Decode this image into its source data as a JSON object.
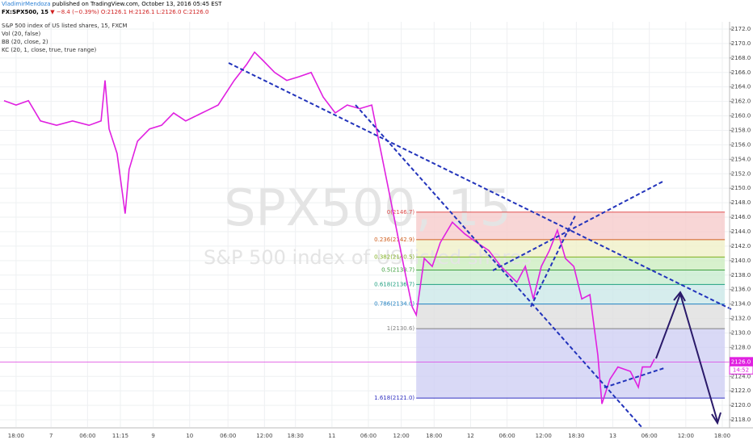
{
  "header": {
    "author": "VladimirMendoza",
    "published": "published on TradingView.com, October 13, 2016 05:45 EST",
    "symbol": "FX:SPX500, 15",
    "change": "▼ −8.4 (−0.39%)",
    "ohlc": "O:2126.1 H:2126.1 L:2126.0 C:2126.0"
  },
  "chart_data": {
    "type": "line",
    "watermark": "SPX500, 15",
    "watermark_subtitle": "S&P 500 index of US listed shares",
    "indicators": [
      "Vol (20, false)",
      "BB (20, close, 2)",
      "KC (20, 1, close, true, true range)"
    ],
    "grid": true,
    "ylim": [
      2117,
      2173
    ],
    "xlim": [
      0,
      200
    ],
    "yticks": [
      {
        "value": 2118,
        "label": "2118.0"
      },
      {
        "value": 2120,
        "label": "2120.0"
      },
      {
        "value": 2122,
        "label": "2122.0"
      },
      {
        "value": 2124,
        "label": "2124.0"
      },
      {
        "value": 2126,
        "label": "2126.0"
      },
      {
        "value": 2128,
        "label": "2128.0"
      },
      {
        "value": 2130,
        "label": "2130.0"
      },
      {
        "value": 2132,
        "label": "2132.0"
      },
      {
        "value": 2134,
        "label": "2134.0"
      },
      {
        "value": 2136,
        "label": "2136.0"
      },
      {
        "value": 2138,
        "label": "2138.0"
      },
      {
        "value": 2140,
        "label": "2140.0"
      },
      {
        "value": 2142,
        "label": "2142.0"
      },
      {
        "value": 2144,
        "label": "2144.0"
      },
      {
        "value": 2146,
        "label": "2146.0"
      },
      {
        "value": 2148,
        "label": "2148.0"
      },
      {
        "value": 2150,
        "label": "2150.0"
      },
      {
        "value": 2152,
        "label": "2152.0"
      },
      {
        "value": 2154,
        "label": "2154.0"
      },
      {
        "value": 2156,
        "label": "2156.0"
      },
      {
        "value": 2158,
        "label": "2158.0"
      },
      {
        "value": 2160,
        "label": "2160.0"
      },
      {
        "value": 2162,
        "label": "2162.0"
      },
      {
        "value": 2164,
        "label": "2164.0"
      },
      {
        "value": 2166,
        "label": "2166.0"
      },
      {
        "value": 2168,
        "label": "2168.0"
      },
      {
        "value": 2170,
        "label": "2170.0"
      },
      {
        "value": 2172,
        "label": "2172.0"
      }
    ],
    "xticks": [
      {
        "value": 4.4,
        "label": "18:00"
      },
      {
        "value": 14,
        "label": "7"
      },
      {
        "value": 24,
        "label": "06:00"
      },
      {
        "value": 33,
        "label": "11:15"
      },
      {
        "value": 42,
        "label": "9"
      },
      {
        "value": 52,
        "label": "10"
      },
      {
        "value": 62.5,
        "label": "06:00"
      },
      {
        "value": 72.5,
        "label": "12:00"
      },
      {
        "value": 81,
        "label": "18:30"
      },
      {
        "value": 91,
        "label": "11"
      },
      {
        "value": 101,
        "label": "06:00"
      },
      {
        "value": 110,
        "label": "12:00"
      },
      {
        "value": 119,
        "label": "18:00"
      },
      {
        "value": 129,
        "label": "12"
      },
      {
        "value": 139,
        "label": "06:00"
      },
      {
        "value": 149,
        "label": "12:00"
      },
      {
        "value": 158,
        "label": "18:30"
      },
      {
        "value": 168,
        "label": "13"
      },
      {
        "value": 178,
        "label": "06:00"
      },
      {
        "value": 188,
        "label": "12:00"
      },
      {
        "value": 198,
        "label": "18:00"
      }
    ],
    "series": [
      {
        "name": "S&P 500 index of US listed shares, 15, FXCM",
        "color": "#e020e0",
        "x": [
          1.1,
          4.4,
          7.8,
          11.1,
          15.5,
          19.9,
          24.4,
          27.7,
          28.8,
          29.9,
          32.1,
          34.3,
          35.4,
          37.7,
          41.0,
          44.3,
          47.6,
          50.9,
          55.4,
          59.8,
          64.2,
          67.6,
          69.8,
          72.0,
          75.3,
          78.6,
          81.9,
          85.3,
          88.6,
          91.9,
          95.2,
          98.6,
          101.9,
          104.1,
          106.3,
          108.5,
          110.7,
          113.0,
          114.1,
          116.3,
          118.5,
          120.7,
          124.0,
          127.4,
          130.7,
          134.0,
          137.3,
          141.7,
          144.0,
          146.2,
          148.4,
          150.6,
          152.8,
          155.0,
          157.3,
          159.5,
          161.7,
          163.9,
          165.0,
          167.2,
          169.4,
          172.8,
          175.0,
          176.1,
          178.3,
          179.4
        ],
        "values": [
          2162.1,
          2161.5,
          2162.1,
          2159.3,
          2158.7,
          2159.3,
          2158.7,
          2159.3,
          2164.9,
          2158.2,
          2154.8,
          2146.5,
          2152.6,
          2156.5,
          2158.2,
          2158.7,
          2160.4,
          2159.3,
          2160.4,
          2161.5,
          2164.9,
          2167.1,
          2168.8,
          2167.7,
          2166.0,
          2164.9,
          2165.4,
          2166.0,
          2162.6,
          2160.4,
          2161.5,
          2161.0,
          2161.5,
          2155.9,
          2150.4,
          2144.8,
          2139.2,
          2133.6,
          2132.5,
          2140.3,
          2139.2,
          2142.5,
          2145.3,
          2143.7,
          2142.5,
          2141.4,
          2139.2,
          2137.0,
          2139.2,
          2134.7,
          2139.2,
          2141.4,
          2144.2,
          2140.3,
          2139.2,
          2134.7,
          2135.3,
          2126.9,
          2120.2,
          2123.6,
          2125.3,
          2124.7,
          2122.5,
          2125.3,
          2125.3,
          2126.4
        ]
      }
    ],
    "last_price": {
      "value": 2126.0,
      "label": "2126.0"
    },
    "countdown": "14:52",
    "fib_x": [
      114.1,
      198.7
    ],
    "fib_levels": [
      {
        "label": "0(2146.7)",
        "value": 2146.7,
        "color": "#e05050",
        "fill": "#f6cccc"
      },
      {
        "label": "0.236(2142.9)",
        "value": 2142.9,
        "color": "#d06020",
        "fill": "#f0f0c8"
      },
      {
        "label": "0.382(2140.5)",
        "value": 2140.5,
        "color": "#80b020",
        "fill": "#cdeec0"
      },
      {
        "label": "0.5(2138.7)",
        "value": 2138.7,
        "color": "#40a040",
        "fill": "#c8ecd0"
      },
      {
        "label": "0.618(2136.7)",
        "value": 2136.7,
        "color": "#20a080",
        "fill": "#cce8e8"
      },
      {
        "label": "0.786(2134.0)",
        "value": 2134.0,
        "color": "#2080c0",
        "fill": "#dedede"
      },
      {
        "label": "1(2130.6)",
        "value": 2130.6,
        "color": "#808080",
        "fill": "#d0d0f4"
      },
      {
        "label": "1.618(2121.0)",
        "value": 2121.0,
        "color": "#3030c0",
        "fill": "none"
      }
    ]
  }
}
